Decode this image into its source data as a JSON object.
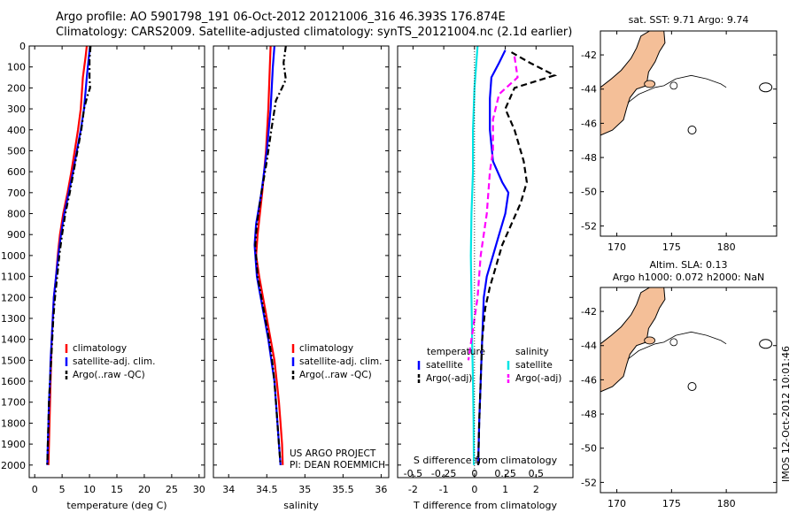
{
  "header": {
    "line1": "Argo profile: AO 5901798_191 06-Oct-2012 20121006_316 46.393S 176.874E",
    "line2": "Climatology: CARS2009. Satellite-adjusted climatology: synTS_20121004.nc (2.1d earlier)"
  },
  "colors": {
    "red": "#ff0000",
    "blue": "#0000ff",
    "black": "#000000",
    "cyan": "#00e5e5",
    "magenta": "#ff00ff",
    "land": "#f4bf98"
  },
  "chart_data": [
    {
      "type": "line",
      "id": "temperature",
      "xlabel": "temperature (deg C)",
      "ylabel": "",
      "xlim": [
        -1,
        31
      ],
      "ylim": [
        2060,
        0
      ],
      "xticks": [
        0,
        5,
        10,
        15,
        20,
        25,
        30
      ],
      "yticks": [
        0,
        100,
        200,
        300,
        400,
        500,
        600,
        700,
        800,
        900,
        1000,
        1100,
        1200,
        1300,
        1400,
        1500,
        1600,
        1700,
        1800,
        1900,
        2000
      ],
      "legend": [
        "climatology",
        "satellite-adj. clim.",
        "Argo(..raw -QC)"
      ],
      "series": [
        {
          "name": "climatology",
          "color": "red",
          "style": "solid",
          "points": [
            [
              9.5,
              0
            ],
            [
              9.3,
              50
            ],
            [
              8.8,
              150
            ],
            [
              8.4,
              300
            ],
            [
              7.9,
              400
            ],
            [
              7.3,
              500
            ],
            [
              6.7,
              600
            ],
            [
              6.0,
              700
            ],
            [
              5.2,
              800
            ],
            [
              4.6,
              900
            ],
            [
              4.2,
              1000
            ],
            [
              3.9,
              1100
            ],
            [
              3.5,
              1200
            ],
            [
              3.3,
              1300
            ],
            [
              3.1,
              1400
            ],
            [
              3.0,
              1500
            ],
            [
              2.9,
              1600
            ],
            [
              2.8,
              1700
            ],
            [
              2.7,
              1800
            ],
            [
              2.6,
              1900
            ],
            [
              2.5,
              2000
            ]
          ]
        },
        {
          "name": "satellite-adj. clim.",
          "color": "blue",
          "style": "solid",
          "points": [
            [
              10.1,
              0
            ],
            [
              9.9,
              50
            ],
            [
              9.5,
              150
            ],
            [
              9.0,
              300
            ],
            [
              8.4,
              400
            ],
            [
              7.7,
              500
            ],
            [
              7.0,
              600
            ],
            [
              6.2,
              700
            ],
            [
              5.4,
              800
            ],
            [
              4.8,
              900
            ],
            [
              4.3,
              1000
            ],
            [
              3.9,
              1100
            ],
            [
              3.5,
              1200
            ],
            [
              3.3,
              1300
            ],
            [
              3.1,
              1400
            ],
            [
              2.9,
              1500
            ],
            [
              2.8,
              1600
            ],
            [
              2.6,
              1700
            ],
            [
              2.5,
              1800
            ],
            [
              2.4,
              1900
            ],
            [
              2.3,
              2000
            ]
          ]
        },
        {
          "name": "Argo(..raw -QC)",
          "color": "black",
          "style": "dashdot",
          "points": [
            [
              10.2,
              0
            ],
            [
              10.0,
              60
            ],
            [
              10.0,
              150
            ],
            [
              10.1,
              200
            ],
            [
              9.6,
              240
            ],
            [
              9.0,
              300
            ],
            [
              8.5,
              400
            ],
            [
              7.8,
              500
            ],
            [
              7.1,
              600
            ],
            [
              6.4,
              700
            ],
            [
              5.6,
              800
            ],
            [
              5.0,
              900
            ],
            [
              4.5,
              1000
            ],
            [
              4.1,
              1100
            ],
            [
              3.7,
              1200
            ],
            [
              3.4,
              1300
            ],
            [
              3.2,
              1400
            ],
            [
              3.0,
              1500
            ],
            [
              2.8,
              1600
            ],
            [
              2.6,
              1700
            ],
            [
              2.5,
              1800
            ],
            [
              2.4,
              1900
            ],
            [
              2.3,
              2000
            ]
          ]
        }
      ]
    },
    {
      "type": "line",
      "id": "salinity",
      "xlabel": "salinity",
      "ylabel": "",
      "xlim": [
        33.8,
        36.1
      ],
      "ylim": [
        2060,
        0
      ],
      "xticks": [
        34,
        34.5,
        35,
        35.5,
        36
      ],
      "xticklabels": [
        "34",
        "34.5",
        "35",
        "35.5",
        "36"
      ],
      "legend": [
        "climatology",
        "satellite-adj. clim.",
        "Argo(..raw -QC)"
      ],
      "annotation": [
        "US ARGO PROJECT",
        "PI: DEAN ROEMMICH"
      ],
      "series": [
        {
          "name": "climatology",
          "color": "red",
          "style": "solid",
          "points": [
            [
              34.55,
              0
            ],
            [
              34.54,
              100
            ],
            [
              34.52,
              300
            ],
            [
              34.49,
              500
            ],
            [
              34.44,
              700
            ],
            [
              34.38,
              900
            ],
            [
              34.36,
              1000
            ],
            [
              34.4,
              1100
            ],
            [
              34.45,
              1200
            ],
            [
              34.5,
              1300
            ],
            [
              34.55,
              1400
            ],
            [
              34.6,
              1500
            ],
            [
              34.63,
              1600
            ],
            [
              34.66,
              1700
            ],
            [
              34.68,
              1800
            ],
            [
              34.7,
              1900
            ],
            [
              34.71,
              2000
            ]
          ]
        },
        {
          "name": "satellite-adj. clim.",
          "color": "blue",
          "style": "solid",
          "points": [
            [
              34.6,
              0
            ],
            [
              34.58,
              100
            ],
            [
              34.55,
              300
            ],
            [
              34.5,
              500
            ],
            [
              34.43,
              700
            ],
            [
              34.36,
              850
            ],
            [
              34.34,
              950
            ],
            [
              34.37,
              1100
            ],
            [
              34.42,
              1200
            ],
            [
              34.47,
              1300
            ],
            [
              34.52,
              1400
            ],
            [
              34.56,
              1500
            ],
            [
              34.6,
              1600
            ],
            [
              34.62,
              1700
            ],
            [
              34.64,
              1800
            ],
            [
              34.66,
              1900
            ],
            [
              34.68,
              2000
            ]
          ]
        },
        {
          "name": "Argo(..raw -QC)",
          "color": "black",
          "style": "dashdot",
          "points": [
            [
              34.75,
              0
            ],
            [
              34.72,
              80
            ],
            [
              34.75,
              160
            ],
            [
              34.7,
              200
            ],
            [
              34.62,
              260
            ],
            [
              34.56,
              400
            ],
            [
              34.5,
              550
            ],
            [
              34.43,
              700
            ],
            [
              34.37,
              850
            ],
            [
              34.35,
              950
            ],
            [
              34.38,
              1100
            ],
            [
              34.43,
              1200
            ],
            [
              34.48,
              1300
            ],
            [
              34.53,
              1400
            ],
            [
              34.57,
              1500
            ],
            [
              34.6,
              1600
            ],
            [
              34.62,
              1700
            ],
            [
              34.64,
              1800
            ],
            [
              34.66,
              1900
            ],
            [
              34.68,
              2000
            ]
          ]
        }
      ]
    },
    {
      "type": "line",
      "id": "difference",
      "xlabel": "T difference from climatology",
      "xlabel_top": "S difference from climatology",
      "ylabel": "",
      "xlim": [
        -2.5,
        3.2
      ],
      "ylim": [
        2060,
        0
      ],
      "xticks": [
        -2,
        -1,
        0,
        1,
        2
      ],
      "xticks_s": [
        -0.5,
        -0.25,
        0,
        0.25,
        0.5
      ],
      "xticklabels_s": [
        "-0.5",
        "-0.25",
        "0",
        "0.25",
        "0.5"
      ],
      "legend_titles": [
        "temperature",
        "salinity"
      ],
      "legend_left": [
        "satellite",
        "Argo(-adj)"
      ],
      "legend_right": [
        "satellite",
        "Argo(-adj)"
      ],
      "series": [
        {
          "name": "temperature satellite",
          "color": "blue",
          "style": "solid",
          "points": [
            [
              1.0,
              20
            ],
            [
              0.8,
              80
            ],
            [
              0.55,
              150
            ],
            [
              0.5,
              250
            ],
            [
              0.5,
              400
            ],
            [
              0.6,
              550
            ],
            [
              0.9,
              650
            ],
            [
              1.1,
              700
            ],
            [
              1.0,
              800
            ],
            [
              0.8,
              900
            ],
            [
              0.6,
              1000
            ],
            [
              0.4,
              1100
            ],
            [
              0.3,
              1200
            ],
            [
              0.25,
              1400
            ],
            [
              0.2,
              1600
            ],
            [
              0.15,
              1800
            ],
            [
              0.12,
              2000
            ]
          ]
        },
        {
          "name": "temperature Argo(-adj)",
          "color": "black",
          "style": "dashed",
          "points": [
            [
              1.2,
              30
            ],
            [
              1.8,
              80
            ],
            [
              2.6,
              140
            ],
            [
              1.3,
              200
            ],
            [
              1.0,
              300
            ],
            [
              1.3,
              400
            ],
            [
              1.6,
              550
            ],
            [
              1.7,
              650
            ],
            [
              1.5,
              750
            ],
            [
              1.2,
              850
            ],
            [
              0.9,
              950
            ],
            [
              0.7,
              1050
            ],
            [
              0.5,
              1150
            ],
            [
              0.35,
              1250
            ],
            [
              0.25,
              1400
            ],
            [
              0.2,
              1600
            ],
            [
              0.15,
              1800
            ],
            [
              0.12,
              2000
            ]
          ]
        },
        {
          "name": "salinity satellite",
          "color": "cyan",
          "style": "solid",
          "points": [
            [
              0.1,
              0
            ],
            [
              0.0,
              200
            ],
            [
              -0.05,
              400
            ],
            [
              -0.05,
              600
            ],
            [
              -0.1,
              800
            ],
            [
              -0.12,
              1000
            ],
            [
              -0.1,
              1200
            ],
            [
              -0.08,
              1400
            ],
            [
              -0.05,
              1600
            ],
            [
              -0.03,
              1800
            ],
            [
              -0.02,
              2000
            ]
          ]
        },
        {
          "name": "salinity Argo(-adj)",
          "color": "magenta",
          "style": "dashed",
          "points": [
            [
              1.3,
              50
            ],
            [
              1.4,
              150
            ],
            [
              0.8,
              230
            ],
            [
              0.6,
              350
            ],
            [
              0.6,
              500
            ],
            [
              0.5,
              600
            ],
            [
              0.4,
              800
            ],
            [
              0.2,
              1000
            ],
            [
              0.1,
              1200
            ],
            [
              -0.1,
              1400
            ],
            [
              -0.2,
              1500
            ]
          ]
        }
      ]
    }
  ],
  "maps": [
    {
      "title": "sat. SST: 9.71  Argo: 9.74",
      "xticks": [
        170,
        175,
        180
      ],
      "yticks": [
        -42,
        -44,
        -46,
        -48,
        -50,
        -52
      ],
      "kind": "sst"
    },
    {
      "title_line1": "Altim. SLA: 0.13",
      "title_line2": "Argo h1000: 0.072 h2000: NaN",
      "xticks": [
        170,
        175,
        180
      ],
      "yticks": [
        -42,
        -44,
        -46,
        -48,
        -50,
        -52
      ],
      "kind": "sla"
    }
  ],
  "footer_vertical": "IMOS 12-Oct-2012 10:01:46"
}
